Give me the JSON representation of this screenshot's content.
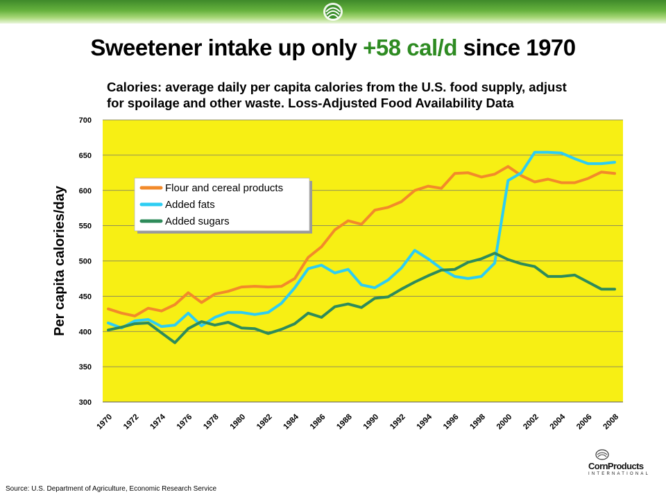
{
  "slide": {
    "title_prefix": "Sweetener intake up only ",
    "title_highlight": "+58 cal/d",
    "title_suffix": " since 1970",
    "subtitle_line1": "Calories: average daily per capita calories from the U.S. food supply, adjust",
    "subtitle_line2": "for spoilage and other waste. Loss-Adjusted Food Availability Data",
    "source": "Source: U.S. Department of Agriculture, Economic Research Service",
    "brand_name": "CornProducts",
    "brand_sub": "INTERNATIONAL"
  },
  "colors": {
    "plot_background": "#f7ef14",
    "flour": "#f28a2a",
    "fats": "#2dcdf3",
    "sugars": "#2e8b5a",
    "accent": "#2e8b22"
  },
  "chart_data": {
    "type": "line",
    "ylabel": "Per capita calories/day",
    "xlabel": "",
    "ylim": [
      300,
      700
    ],
    "yticks": [
      300,
      350,
      400,
      450,
      500,
      550,
      600,
      650,
      700
    ],
    "grid": true,
    "legend_position": "upper-left",
    "x": [
      1970,
      1971,
      1972,
      1973,
      1974,
      1975,
      1976,
      1977,
      1978,
      1979,
      1980,
      1981,
      1982,
      1983,
      1984,
      1985,
      1986,
      1987,
      1988,
      1989,
      1990,
      1991,
      1992,
      1993,
      1994,
      1995,
      1996,
      1997,
      1998,
      1999,
      2000,
      2001,
      2002,
      2003,
      2004,
      2005,
      2006,
      2007,
      2008
    ],
    "xtick_labels": [
      "1970",
      "1972",
      "1974",
      "1976",
      "1978",
      "1980",
      "1982",
      "1984",
      "1986",
      "1988",
      "1990",
      "1992",
      "1994",
      "1996",
      "1998",
      "2000",
      "2002",
      "2004",
      "2006",
      "2008"
    ],
    "series": [
      {
        "name": "Flour and cereal products",
        "color_key": "flour",
        "values": [
          432,
          426,
          422,
          433,
          429,
          438,
          455,
          441,
          453,
          457,
          463,
          464,
          463,
          464,
          475,
          505,
          520,
          544,
          557,
          552,
          572,
          576,
          584,
          600,
          606,
          603,
          624,
          625,
          619,
          623,
          634,
          621,
          612,
          616,
          611,
          611,
          617,
          626,
          624
        ]
      },
      {
        "name": "Added fats",
        "color_key": "fats",
        "values": [
          412,
          405,
          415,
          417,
          407,
          409,
          426,
          408,
          420,
          427,
          427,
          424,
          427,
          440,
          462,
          489,
          494,
          483,
          488,
          466,
          462,
          473,
          490,
          515,
          503,
          489,
          478,
          475,
          478,
          497,
          614,
          625,
          654,
          654,
          653,
          645,
          638,
          638,
          640
        ]
      },
      {
        "name": "Added sugars",
        "color_key": "sugars",
        "values": [
          402,
          406,
          411,
          412,
          398,
          384,
          404,
          414,
          409,
          413,
          405,
          404,
          397,
          403,
          411,
          426,
          420,
          435,
          439,
          434,
          447,
          449,
          460,
          470,
          479,
          487,
          488,
          498,
          503,
          511,
          502,
          496,
          492,
          478,
          478,
          480,
          470,
          460,
          460
        ]
      }
    ]
  }
}
